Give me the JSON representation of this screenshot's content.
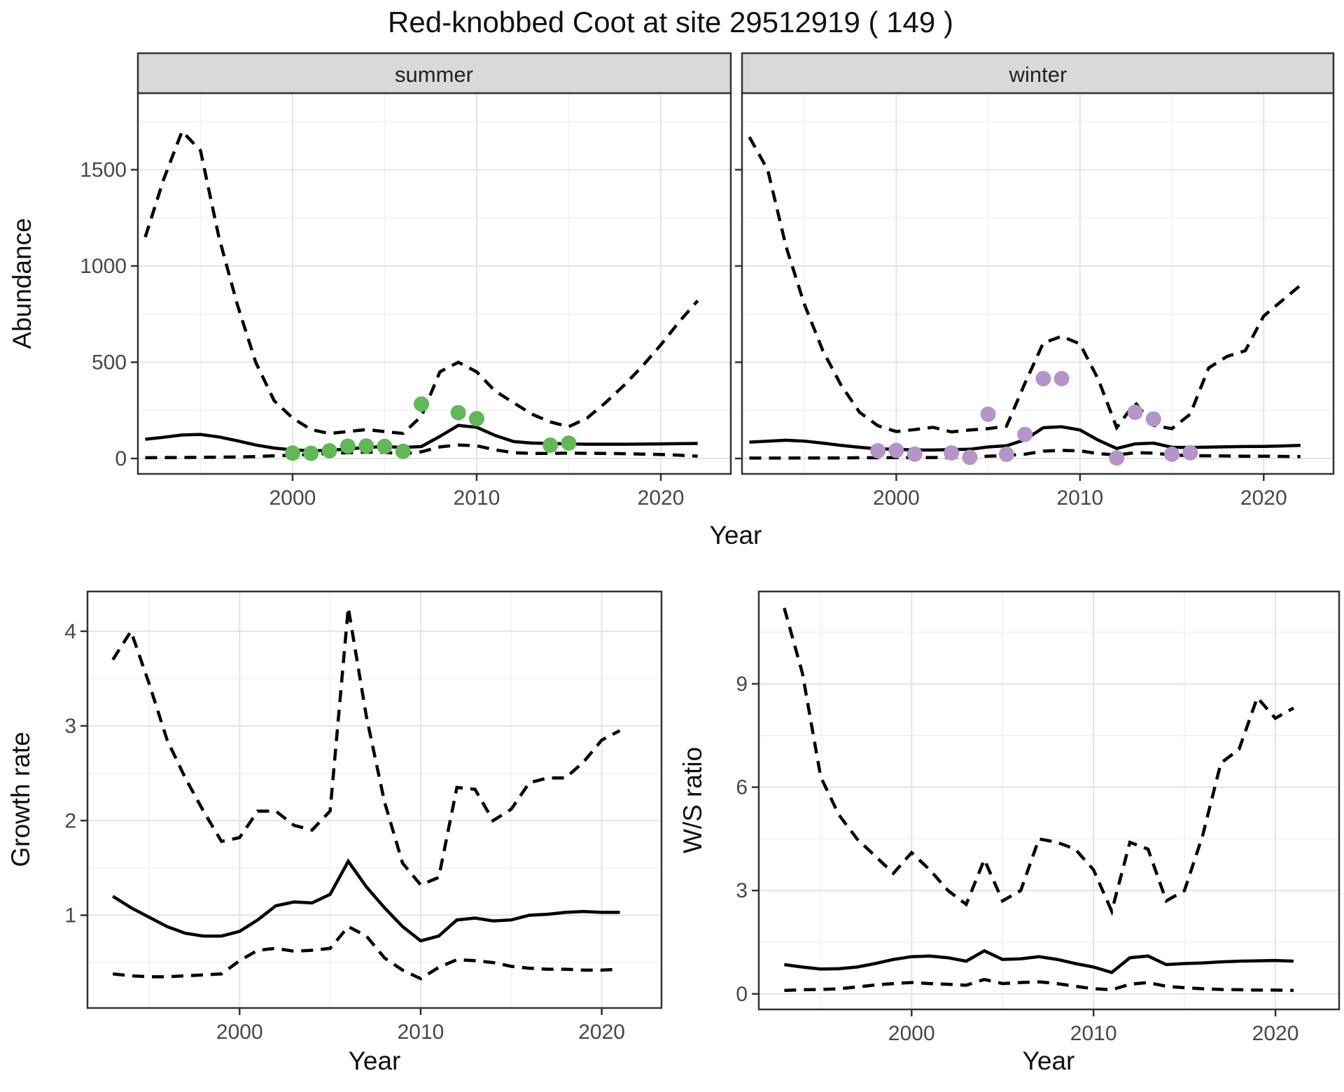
{
  "title": "Red-knobbed Coot at site 29512919 ( 149 )",
  "top_chart": {
    "y_axis_label": "Abundance",
    "x_axis_label": "Year",
    "facets": [
      {
        "label": "summer"
      },
      {
        "label": "winter"
      }
    ]
  },
  "growth_chart": {
    "y_axis_label": "Growth rate",
    "x_axis_label": "Year"
  },
  "ws_chart": {
    "y_axis_label": "W/S ratio",
    "x_axis_label": "Year"
  },
  "colors": {
    "summer_points": "#61b856",
    "winter_points": "#b594c7",
    "line": "#000000",
    "strip_bg": "#d9d9d9"
  },
  "chart_data": [
    {
      "type": "line",
      "panel": "summer",
      "facet": "summer",
      "ylabel": "Abundance",
      "xlabel": "Year",
      "x_ticks": [
        2000,
        2010,
        2020
      ],
      "y_ticks": [
        0,
        500,
        1000,
        1500
      ],
      "xlim": [
        1991.6,
        2023.8
      ],
      "ylim": [
        -80,
        1898
      ],
      "grid": true,
      "x": [
        1992,
        1993,
        1994,
        1995,
        1996,
        1997,
        1998,
        1999,
        2000,
        2001,
        2002,
        2003,
        2004,
        2005,
        2006,
        2007,
        2008,
        2009,
        2010,
        2011,
        2012,
        2013,
        2014,
        2015,
        2016,
        2017,
        2018,
        2019,
        2020,
        2021,
        2022
      ],
      "series": [
        {
          "name": "upper_ci",
          "style": "dashed",
          "values": [
            1150,
            1450,
            1700,
            1600,
            1150,
            800,
            500,
            300,
            210,
            150,
            130,
            140,
            150,
            140,
            130,
            220,
            450,
            500,
            450,
            350,
            290,
            230,
            190,
            165,
            210,
            290,
            380,
            480,
            590,
            710,
            820
          ]
        },
        {
          "name": "mean",
          "style": "solid",
          "values": [
            100,
            110,
            122,
            125,
            112,
            92,
            70,
            54,
            45,
            40,
            42,
            50,
            57,
            62,
            57,
            62,
            115,
            172,
            162,
            120,
            88,
            80,
            78,
            76,
            74,
            74,
            74,
            75,
            76,
            77,
            78
          ]
        },
        {
          "name": "lower_ci",
          "style": "dashed",
          "values": [
            4,
            5,
            5,
            6,
            7,
            8,
            10,
            14,
            17,
            21,
            26,
            30,
            33,
            32,
            24,
            35,
            60,
            70,
            66,
            45,
            30,
            26,
            26,
            28,
            27,
            26,
            25,
            23,
            21,
            17,
            12
          ]
        }
      ],
      "points": {
        "name": "observed-counts-summer",
        "color": "#61b856",
        "x": [
          2000,
          2001,
          2002,
          2003,
          2004,
          2005,
          2006,
          2007,
          2009,
          2010,
          2014,
          2015
        ],
        "y": [
          28,
          27,
          40,
          64,
          65,
          63,
          37,
          283,
          238,
          207,
          69,
          80
        ]
      }
    },
    {
      "type": "line",
      "panel": "winter",
      "facet": "winter",
      "ylabel": "Abundance",
      "xlabel": "Year",
      "x_ticks": [
        2000,
        2010,
        2020
      ],
      "y_ticks": [
        0,
        500,
        1000,
        1500
      ],
      "xlim": [
        1991.6,
        2023.8
      ],
      "ylim": [
        -80,
        1898
      ],
      "grid": true,
      "x": [
        1992,
        1993,
        1994,
        1995,
        1996,
        1997,
        1998,
        1999,
        2000,
        2001,
        2002,
        2003,
        2004,
        2005,
        2006,
        2007,
        2008,
        2009,
        2010,
        2011,
        2012,
        2013,
        2014,
        2015,
        2016,
        2017,
        2018,
        2019,
        2020,
        2021,
        2022
      ],
      "series": [
        {
          "name": "upper_ci",
          "style": "dashed",
          "values": [
            1670,
            1500,
            1100,
            800,
            560,
            380,
            240,
            170,
            140,
            150,
            162,
            138,
            148,
            155,
            168,
            390,
            600,
            635,
            595,
            410,
            160,
            290,
            172,
            155,
            230,
            470,
            530,
            560,
            740,
            820,
            900
          ]
        },
        {
          "name": "mean",
          "style": "solid",
          "values": [
            85,
            90,
            95,
            90,
            80,
            68,
            58,
            50,
            48,
            44,
            44,
            46,
            48,
            60,
            66,
            97,
            160,
            165,
            148,
            95,
            52,
            76,
            80,
            58,
            57,
            59,
            61,
            62,
            63,
            65,
            68
          ]
        },
        {
          "name": "lower_ci",
          "style": "dashed",
          "values": [
            2,
            2,
            2,
            3,
            3,
            3,
            4,
            4,
            5,
            5,
            5,
            6,
            8,
            12,
            16,
            22,
            38,
            42,
            40,
            25,
            18,
            30,
            28,
            18,
            15,
            14,
            13,
            12,
            12,
            11,
            10
          ]
        }
      ],
      "points": {
        "name": "observed-counts-winter",
        "color": "#b594c7",
        "x": [
          1999,
          2000,
          2001,
          2003,
          2004,
          2005,
          2006,
          2007,
          2008,
          2009,
          2012,
          2013,
          2014,
          2015,
          2016
        ],
        "y": [
          40,
          42,
          23,
          29,
          6,
          230,
          22,
          125,
          415,
          415,
          3,
          240,
          205,
          22,
          30
        ]
      }
    },
    {
      "type": "line",
      "panel": "growth",
      "ylabel": "Growth rate",
      "xlabel": "Year",
      "x_ticks": [
        2000,
        2010,
        2020
      ],
      "y_ticks": [
        1,
        2,
        3,
        4
      ],
      "xlim": [
        1991.6,
        2023.3
      ],
      "ylim": [
        0.02,
        4.42
      ],
      "grid": true,
      "x": [
        1993,
        1994,
        1995,
        1996,
        1997,
        1998,
        1999,
        2000,
        2001,
        2002,
        2003,
        2004,
        2005,
        2006,
        2007,
        2008,
        2009,
        2010,
        2011,
        2012,
        2013,
        2014,
        2015,
        2016,
        2017,
        2018,
        2019,
        2020,
        2021
      ],
      "series": [
        {
          "name": "upper_ci",
          "style": "dashed",
          "values": [
            3.7,
            4.0,
            3.45,
            2.85,
            2.45,
            2.1,
            1.78,
            1.82,
            2.1,
            2.1,
            1.95,
            1.9,
            2.1,
            4.25,
            3.1,
            2.2,
            1.55,
            1.32,
            1.4,
            2.35,
            2.33,
            2.0,
            2.12,
            2.4,
            2.45,
            2.45,
            2.62,
            2.85,
            2.95
          ]
        },
        {
          "name": "mean",
          "style": "solid",
          "values": [
            1.2,
            1.08,
            0.98,
            0.88,
            0.81,
            0.78,
            0.78,
            0.83,
            0.95,
            1.1,
            1.14,
            1.13,
            1.22,
            1.57,
            1.3,
            1.08,
            0.88,
            0.73,
            0.78,
            0.95,
            0.97,
            0.94,
            0.95,
            1.0,
            1.01,
            1.03,
            1.04,
            1.03,
            1.03
          ]
        },
        {
          "name": "lower_ci",
          "style": "dashed",
          "values": [
            0.38,
            0.36,
            0.35,
            0.35,
            0.36,
            0.37,
            0.38,
            0.52,
            0.63,
            0.65,
            0.62,
            0.63,
            0.65,
            0.88,
            0.78,
            0.55,
            0.42,
            0.33,
            0.45,
            0.53,
            0.52,
            0.5,
            0.46,
            0.44,
            0.43,
            0.43,
            0.42,
            0.42,
            0.43
          ]
        }
      ]
    },
    {
      "type": "line",
      "panel": "ws",
      "ylabel": "W/S ratio",
      "xlabel": "Year",
      "x_ticks": [
        2000,
        2010,
        2020
      ],
      "y_ticks": [
        0,
        3,
        6,
        9
      ],
      "xlim": [
        1991.6,
        2023.5
      ],
      "ylim": [
        -0.45,
        11.68
      ],
      "grid": true,
      "x": [
        1993,
        1994,
        1995,
        1996,
        1997,
        1998,
        1999,
        2000,
        2001,
        2002,
        2003,
        2004,
        2005,
        2006,
        2007,
        2008,
        2009,
        2010,
        2011,
        2012,
        2013,
        2014,
        2015,
        2016,
        2017,
        2018,
        2019,
        2020,
        2021
      ],
      "series": [
        {
          "name": "upper_ci",
          "style": "dashed",
          "values": [
            11.2,
            9.3,
            6.3,
            5.2,
            4.5,
            4.0,
            3.5,
            4.1,
            3.6,
            3.0,
            2.6,
            3.9,
            2.7,
            3.0,
            4.5,
            4.4,
            4.2,
            3.6,
            2.4,
            4.4,
            4.2,
            2.7,
            3.0,
            4.6,
            6.7,
            7.1,
            8.6,
            8.0,
            8.3
          ]
        },
        {
          "name": "mean",
          "style": "solid",
          "values": [
            0.85,
            0.78,
            0.72,
            0.73,
            0.78,
            0.88,
            1.0,
            1.08,
            1.1,
            1.05,
            0.95,
            1.25,
            1.0,
            1.02,
            1.08,
            1.0,
            0.88,
            0.78,
            0.62,
            1.05,
            1.1,
            0.85,
            0.88,
            0.9,
            0.93,
            0.95,
            0.96,
            0.97,
            0.95
          ]
        },
        {
          "name": "lower_ci",
          "style": "dashed",
          "values": [
            0.1,
            0.12,
            0.13,
            0.15,
            0.2,
            0.26,
            0.3,
            0.33,
            0.3,
            0.28,
            0.25,
            0.42,
            0.3,
            0.33,
            0.35,
            0.3,
            0.22,
            0.15,
            0.12,
            0.28,
            0.33,
            0.22,
            0.18,
            0.15,
            0.13,
            0.12,
            0.11,
            0.11,
            0.1
          ]
        }
      ]
    }
  ]
}
